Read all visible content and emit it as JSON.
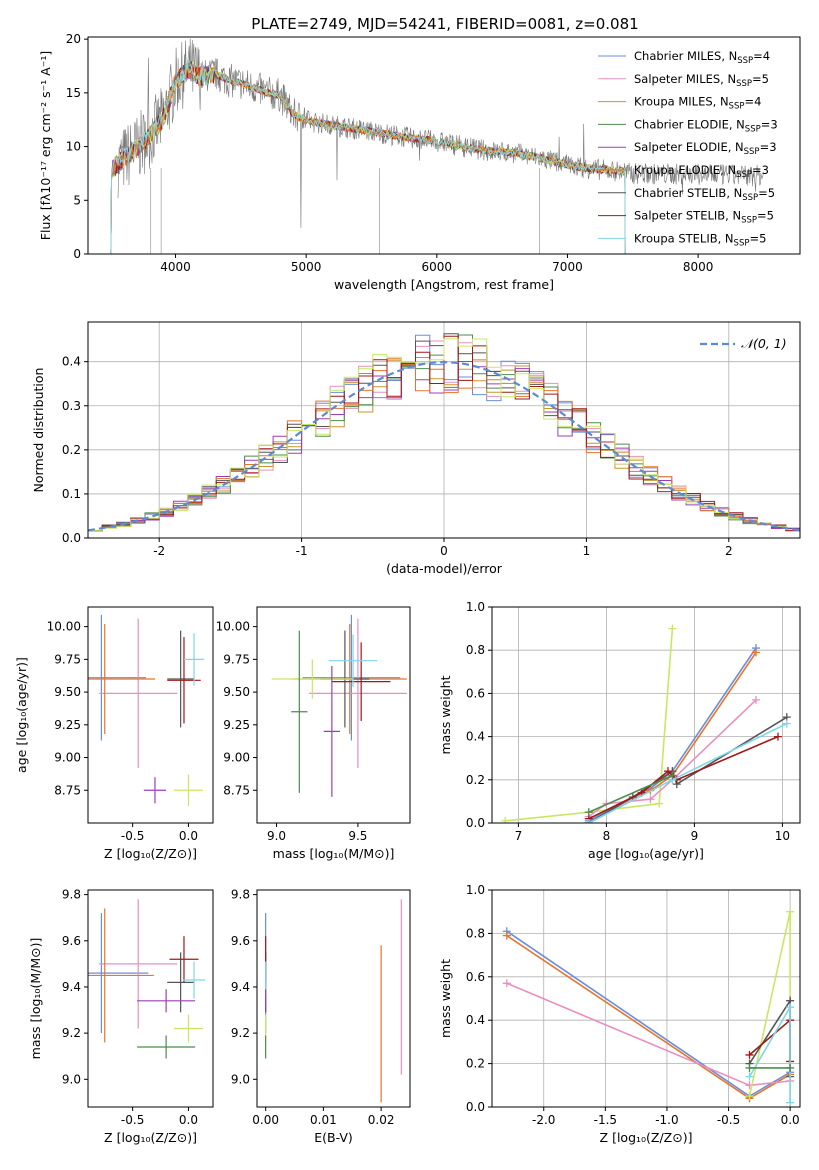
{
  "figure": {
    "title": "PLATE=2749, MJD=54241, FIBERID=0081, z=0.081"
  },
  "colors": [
    "#6b8ed8",
    "#e88fc0",
    "#c8952a",
    "#4e8a4e",
    "#9b3fb8",
    "#e8732a",
    "#555555",
    "#a01818",
    "#7fd6e8",
    "#c8e864"
  ],
  "legend_labels": {
    "spectrum": [
      {
        "main": "Chabrier MILES, N",
        "sub": "SSP",
        "tail": "=4"
      },
      {
        "main": "Salpeter MILES, N",
        "sub": "SSP",
        "tail": "=5"
      },
      {
        "main": "Kroupa MILES, N",
        "sub": "SSP",
        "tail": "=4"
      },
      {
        "main": "Chabrier ELODIE, N",
        "sub": "SSP",
        "tail": "=3"
      },
      {
        "main": "Salpeter ELODIE, N",
        "sub": "SSP",
        "tail": "=3"
      },
      {
        "main": "Kroupa ELODIE, N",
        "sub": "SSP",
        "tail": "=3"
      },
      {
        "main": "Chabrier STELIB, N",
        "sub": "SSP",
        "tail": "=5"
      },
      {
        "main": "Salpeter STELIB, N",
        "sub": "SSP",
        "tail": "=5"
      },
      {
        "main": "Kroupa STELIB, N",
        "sub": "SSP",
        "tail": "=5"
      }
    ],
    "hist": "𝒩(0, 1)"
  },
  "chart_data": [
    {
      "id": "spectrum",
      "type": "line",
      "xlabel": "wavelength [Angstrom, rest frame]",
      "ylabel": "Flux [fλ10⁻¹⁷ erg cm⁻² s⁻¹ A⁻¹]",
      "xlim": [
        3330,
        8780
      ],
      "ylim": [
        0,
        20.2
      ],
      "xticks": [
        4000,
        5000,
        6000,
        7000,
        8000
      ],
      "yticks": [
        0,
        5,
        10,
        15,
        20
      ],
      "model_shape": {
        "x": [
          3500,
          3600,
          3700,
          3800,
          3900,
          4000,
          4100,
          4200,
          4300,
          4400,
          4500,
          4600,
          4700,
          4800,
          4900,
          5000,
          5200,
          5400,
          5600,
          5800,
          6000,
          6200,
          6400,
          6600,
          6800,
          7000,
          7200,
          7400
        ],
        "y": [
          7.8,
          8.8,
          9.8,
          11.0,
          12.5,
          16.0,
          17.2,
          16.5,
          16.8,
          16.2,
          15.9,
          15.5,
          15.0,
          14.8,
          13.0,
          12.4,
          12.0,
          11.6,
          11.2,
          10.8,
          10.5,
          10.0,
          9.6,
          9.4,
          8.9,
          8.3,
          7.9,
          7.7
        ]
      },
      "data_extent": [
        3560,
        8500
      ]
    },
    {
      "id": "residual_hist",
      "type": "line",
      "xlabel": "(data-model)/error",
      "ylabel": "Normed distribution",
      "xlim": [
        -2.5,
        2.5
      ],
      "ylim": [
        0,
        0.49
      ],
      "xticks": [
        -2,
        -1,
        0,
        1,
        2
      ],
      "yticks": [
        0.0,
        0.1,
        0.2,
        0.3,
        0.4
      ],
      "bin_width": 0.1,
      "grid": true,
      "legend": "top-right"
    },
    {
      "id": "age_vs_Z",
      "type": "scatter",
      "xlabel": "Z [log₁₀(Z/Z⊙)]",
      "ylabel": "age  [log₁₀(age/yr)]",
      "xlim": [
        -0.9,
        0.22
      ],
      "ylim": [
        8.5,
        10.15
      ],
      "xticks": [
        -0.5,
        0.0
      ],
      "yticks": [
        8.75,
        9.0,
        9.25,
        9.5,
        9.75,
        10.0
      ],
      "points": [
        {
          "x": -0.78,
          "y": 9.61,
          "xerr": 0.4,
          "yerr": 0.48,
          "c": 0
        },
        {
          "x": -0.45,
          "y": 9.49,
          "xerr": 0.35,
          "yerr": 0.57,
          "c": 1
        },
        {
          "x": -0.75,
          "y": 9.6,
          "xerr": 0.45,
          "yerr": 0.42,
          "c": 5
        },
        {
          "x": -0.07,
          "y": 9.6,
          "xerr": 0.12,
          "yerr": 0.37,
          "c": 6
        },
        {
          "x": -0.04,
          "y": 9.59,
          "xerr": 0.15,
          "yerr": 0.33,
          "c": 7
        },
        {
          "x": 0.0,
          "y": 8.75,
          "xerr": 0.13,
          "yerr": 0.12,
          "c": 9
        },
        {
          "x": 0.05,
          "y": 9.75,
          "xerr": 0.09,
          "yerr": 0.2,
          "c": 8
        },
        {
          "x": -0.3,
          "y": 8.75,
          "xerr": 0.1,
          "yerr": 0.1,
          "c": 4
        }
      ]
    },
    {
      "id": "age_vs_mass",
      "type": "scatter",
      "xlabel": "mass [log₁₀(M/M⊙)]",
      "ylabel": "",
      "xlim": [
        8.88,
        9.82
      ],
      "ylim": [
        8.5,
        10.15
      ],
      "xticks": [
        9.0,
        9.5
      ],
      "yticks": [
        8.75,
        9.0,
        9.25,
        9.5,
        9.75,
        10.0
      ],
      "points": [
        {
          "x": 9.46,
          "y": 9.61,
          "xerr": 0.3,
          "yerr": 0.48,
          "c": 0
        },
        {
          "x": 9.5,
          "y": 9.49,
          "xerr": 0.3,
          "yerr": 0.57,
          "c": 1
        },
        {
          "x": 9.45,
          "y": 9.6,
          "xerr": 0.35,
          "yerr": 0.42,
          "c": 5
        },
        {
          "x": 9.42,
          "y": 9.6,
          "xerr": 0.15,
          "yerr": 0.37,
          "c": 6
        },
        {
          "x": 9.52,
          "y": 9.58,
          "xerr": 0.18,
          "yerr": 0.3,
          "c": 7
        },
        {
          "x": 9.22,
          "y": 9.6,
          "xerr": 0.25,
          "yerr": 0.15,
          "c": 9
        },
        {
          "x": 9.47,
          "y": 9.74,
          "xerr": 0.15,
          "yerr": 0.2,
          "c": 8
        },
        {
          "x": 9.14,
          "y": 9.35,
          "xerr": 0.05,
          "yerr": 0.62,
          "c": 3
        },
        {
          "x": 9.34,
          "y": 9.2,
          "xerr": 0.05,
          "yerr": 0.5,
          "c": 4
        }
      ]
    },
    {
      "id": "weight_vs_age",
      "type": "line",
      "xlabel": "age  [log₁₀(age/yr)]",
      "ylabel": "mass weight",
      "xlim": [
        6.7,
        10.2
      ],
      "ylim": [
        0.0,
        1.0
      ],
      "xticks": [
        7,
        8,
        9,
        10
      ],
      "yticks": [
        0.0,
        0.2,
        0.4,
        0.6,
        0.8,
        1.0
      ],
      "grid": true,
      "series": [
        {
          "c": 9,
          "x": [
            6.85,
            7.8,
            8.6,
            8.75
          ],
          "y": [
            0.01,
            0.05,
            0.09,
            0.9
          ]
        },
        {
          "c": 0,
          "x": [
            7.8,
            8.5,
            8.75,
            9.7
          ],
          "y": [
            0.01,
            0.16,
            0.24,
            0.81
          ]
        },
        {
          "c": 5,
          "x": [
            7.8,
            8.5,
            8.75,
            9.7
          ],
          "y": [
            0.0,
            0.15,
            0.22,
            0.79
          ]
        },
        {
          "c": 1,
          "x": [
            7.8,
            8.0,
            8.5,
            8.75,
            9.7
          ],
          "y": [
            0.03,
            0.09,
            0.11,
            0.2,
            0.57
          ]
        },
        {
          "c": 6,
          "x": [
            7.8,
            8.3,
            8.75,
            8.8,
            10.05
          ],
          "y": [
            0.0,
            0.12,
            0.24,
            0.18,
            0.49
          ]
        },
        {
          "c": 7,
          "x": [
            7.8,
            8.4,
            8.7,
            8.8,
            9.95
          ],
          "y": [
            0.02,
            0.14,
            0.24,
            0.2,
            0.4
          ]
        },
        {
          "c": 8,
          "x": [
            7.8,
            8.75,
            10.05
          ],
          "y": [
            0.0,
            0.2,
            0.46
          ]
        },
        {
          "c": 3,
          "x": [
            7.8,
            8.75
          ],
          "y": [
            0.05,
            0.22
          ]
        }
      ]
    },
    {
      "id": "mass_vs_Z",
      "type": "scatter",
      "xlabel": "Z [log₁₀(Z/Z⊙)]",
      "ylabel": "mass [log₁₀(M/M⊙)]",
      "xlim": [
        -0.9,
        0.22
      ],
      "ylim": [
        8.88,
        9.82
      ],
      "xticks": [
        -0.5,
        0.0
      ],
      "yticks": [
        9.0,
        9.2,
        9.4,
        9.6,
        9.8
      ],
      "points": [
        {
          "x": -0.78,
          "y": 9.46,
          "xerr": 0.42,
          "yerr": 0.26,
          "c": 0
        },
        {
          "x": -0.45,
          "y": 9.5,
          "xerr": 0.35,
          "yerr": 0.28,
          "c": 1
        },
        {
          "x": -0.75,
          "y": 9.45,
          "xerr": 0.44,
          "yerr": 0.29,
          "c": 5
        },
        {
          "x": -0.07,
          "y": 9.42,
          "xerr": 0.12,
          "yerr": 0.13,
          "c": 6
        },
        {
          "x": -0.04,
          "y": 9.52,
          "xerr": 0.13,
          "yerr": 0.1,
          "c": 7
        },
        {
          "x": 0.0,
          "y": 9.22,
          "xerr": 0.13,
          "yerr": 0.06,
          "c": 9
        },
        {
          "x": 0.05,
          "y": 9.43,
          "xerr": 0.1,
          "yerr": 0.08,
          "c": 8
        },
        {
          "x": -0.2,
          "y": 9.14,
          "xerr": 0.26,
          "yerr": 0.05,
          "c": 3
        },
        {
          "x": -0.2,
          "y": 9.34,
          "xerr": 0.26,
          "yerr": 0.05,
          "c": 4
        }
      ]
    },
    {
      "id": "mass_vs_EBV",
      "type": "scatter",
      "xlabel": "E(B-V)",
      "ylabel": "",
      "xlim": [
        -0.0015,
        0.025
      ],
      "ylim": [
        8.88,
        9.82
      ],
      "xticks": [
        0.0,
        0.01,
        0.02
      ],
      "yticks": [
        9.0,
        9.2,
        9.4,
        9.6,
        9.8
      ],
      "points": [
        {
          "x": 0.0,
          "y": 9.46,
          "yerr": 0.26,
          "c": 0
        },
        {
          "x": 0.0,
          "y": 9.42,
          "yerr": 0.13,
          "c": 6
        },
        {
          "x": 0.0,
          "y": 9.52,
          "yerr": 0.1,
          "c": 7
        },
        {
          "x": 0.0,
          "y": 9.22,
          "yerr": 0.06,
          "c": 9
        },
        {
          "x": 0.0,
          "y": 9.43,
          "yerr": 0.08,
          "c": 8
        },
        {
          "x": 0.0,
          "y": 9.14,
          "yerr": 0.05,
          "c": 3
        },
        {
          "x": 0.0,
          "y": 9.34,
          "yerr": 0.05,
          "c": 4
        },
        {
          "x": 0.02,
          "y": 9.24,
          "yerr": 0.34,
          "c": 5
        },
        {
          "x": 0.0235,
          "y": 9.4,
          "yerr": 0.38,
          "c": 1
        }
      ]
    },
    {
      "id": "weight_vs_Z",
      "type": "line",
      "xlabel": "Z [log₁₀(Z/Z⊙)]",
      "ylabel": "mass weight",
      "xlim": [
        -2.42,
        0.08
      ],
      "ylim": [
        0.0,
        1.0
      ],
      "xticks": [
        -2.0,
        -1.5,
        -1.0,
        -0.5,
        0.0
      ],
      "yticks": [
        0.0,
        0.2,
        0.4,
        0.6,
        0.8,
        1.0
      ],
      "grid": true,
      "series": [
        {
          "c": 0,
          "x": [
            -2.3,
            -0.33,
            0.0
          ],
          "y": [
            0.81,
            0.05,
            0.16
          ]
        },
        {
          "c": 5,
          "x": [
            -2.3,
            -0.33,
            0.0
          ],
          "y": [
            0.79,
            0.04,
            0.15
          ]
        },
        {
          "c": 1,
          "x": [
            -2.3,
            -0.33,
            0.0
          ],
          "y": [
            0.57,
            0.1,
            0.12
          ]
        },
        {
          "c": 9,
          "x": [
            -0.33,
            0.0,
            0.0
          ],
          "y": [
            0.05,
            0.9,
            0.02
          ]
        },
        {
          "c": 6,
          "x": [
            -0.33,
            0.0,
            0.0
          ],
          "y": [
            0.2,
            0.49,
            0.14
          ]
        },
        {
          "c": 7,
          "x": [
            -0.33,
            0.0,
            0.0
          ],
          "y": [
            0.24,
            0.4,
            0.21
          ]
        },
        {
          "c": 8,
          "x": [
            -0.33,
            0.0,
            0.0
          ],
          "y": [
            0.14,
            0.46,
            0.02
          ]
        },
        {
          "c": 3,
          "x": [
            -0.33,
            0.0
          ],
          "y": [
            0.18,
            0.18
          ]
        }
      ]
    }
  ]
}
